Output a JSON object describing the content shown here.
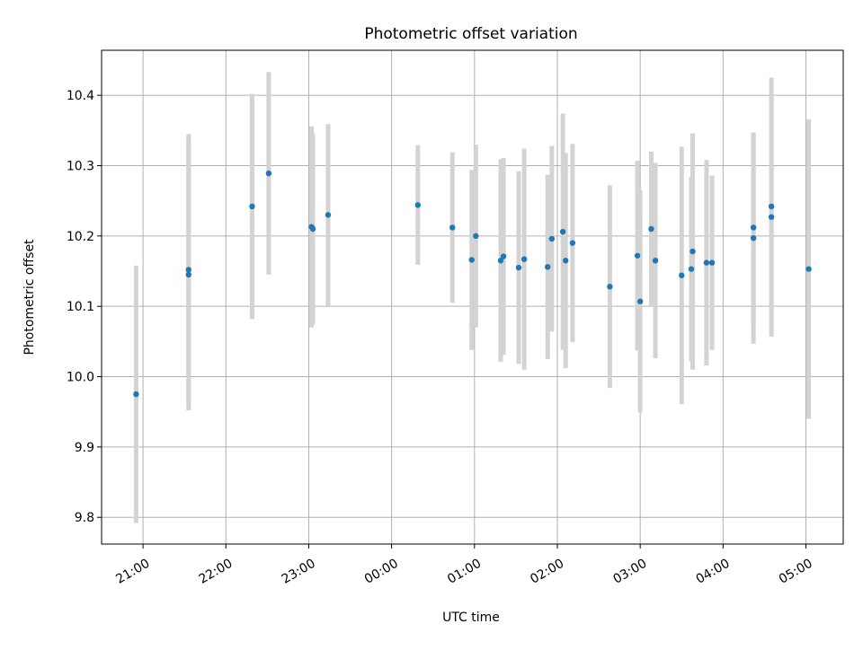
{
  "chart_data": {
    "type": "scatter",
    "title": "Photometric offset variation",
    "xlabel": "UTC time",
    "ylabel": "Photometric offset",
    "xlim": [
      "20:30",
      "05:27"
    ],
    "ylim": [
      9.762,
      10.464
    ],
    "x_ticks": [
      "21:00",
      "22:00",
      "23:00",
      "00:00",
      "01:00",
      "02:00",
      "03:00",
      "04:00",
      "05:00"
    ],
    "y_ticks": [
      "9.8",
      "9.9",
      "10.0",
      "10.1",
      "10.2",
      "10.3",
      "10.4"
    ],
    "grid": true,
    "marker_color": "#1f77b4",
    "errorbar_color": "#d3d3d3",
    "points": [
      {
        "t": "20:55",
        "y": 9.975,
        "err": 0.183
      },
      {
        "t": "21:33",
        "y": 10.152,
        "err": 0.193
      },
      {
        "t": "21:33",
        "y": 10.145,
        "err": 0.193
      },
      {
        "t": "22:19",
        "y": 10.242,
        "err": 0.16
      },
      {
        "t": "22:31",
        "y": 10.289,
        "err": 0.144
      },
      {
        "t": "23:02",
        "y": 10.213,
        "err": 0.143
      },
      {
        "t": "23:03",
        "y": 10.21,
        "err": 0.136
      },
      {
        "t": "23:14",
        "y": 10.23,
        "err": 0.129
      },
      {
        "t": "00:19",
        "y": 10.244,
        "err": 0.085
      },
      {
        "t": "00:44",
        "y": 10.212,
        "err": 0.107
      },
      {
        "t": "00:58",
        "y": 10.166,
        "err": 0.128
      },
      {
        "t": "01:01",
        "y": 10.2,
        "err": 0.13
      },
      {
        "t": "01:19",
        "y": 10.165,
        "err": 0.144
      },
      {
        "t": "01:21",
        "y": 10.171,
        "err": 0.14
      },
      {
        "t": "01:32",
        "y": 10.155,
        "err": 0.137
      },
      {
        "t": "01:36",
        "y": 10.167,
        "err": 0.157
      },
      {
        "t": "01:53",
        "y": 10.156,
        "err": 0.131
      },
      {
        "t": "01:56",
        "y": 10.196,
        "err": 0.132
      },
      {
        "t": "02:04",
        "y": 10.206,
        "err": 0.168
      },
      {
        "t": "02:06",
        "y": 10.165,
        "err": 0.153
      },
      {
        "t": "02:11",
        "y": 10.19,
        "err": 0.141
      },
      {
        "t": "02:38",
        "y": 10.128,
        "err": 0.144
      },
      {
        "t": "02:58",
        "y": 10.172,
        "err": 0.135
      },
      {
        "t": "03:00",
        "y": 10.107,
        "err": 0.158
      },
      {
        "t": "03:08",
        "y": 10.21,
        "err": 0.11
      },
      {
        "t": "03:11",
        "y": 10.165,
        "err": 0.139
      },
      {
        "t": "03:30",
        "y": 10.144,
        "err": 0.183
      },
      {
        "t": "03:37",
        "y": 10.153,
        "err": 0.131
      },
      {
        "t": "03:38",
        "y": 10.178,
        "err": 0.168
      },
      {
        "t": "03:48",
        "y": 10.162,
        "err": 0.146
      },
      {
        "t": "03:52",
        "y": 10.162,
        "err": 0.124
      },
      {
        "t": "04:22",
        "y": 10.212,
        "err": 0.135
      },
      {
        "t": "04:22",
        "y": 10.197,
        "err": 0.15
      },
      {
        "t": "04:35",
        "y": 10.242,
        "err": 0.183
      },
      {
        "t": "04:35",
        "y": 10.227,
        "err": 0.17
      },
      {
        "t": "05:02",
        "y": 10.153,
        "err": 0.213
      }
    ]
  }
}
